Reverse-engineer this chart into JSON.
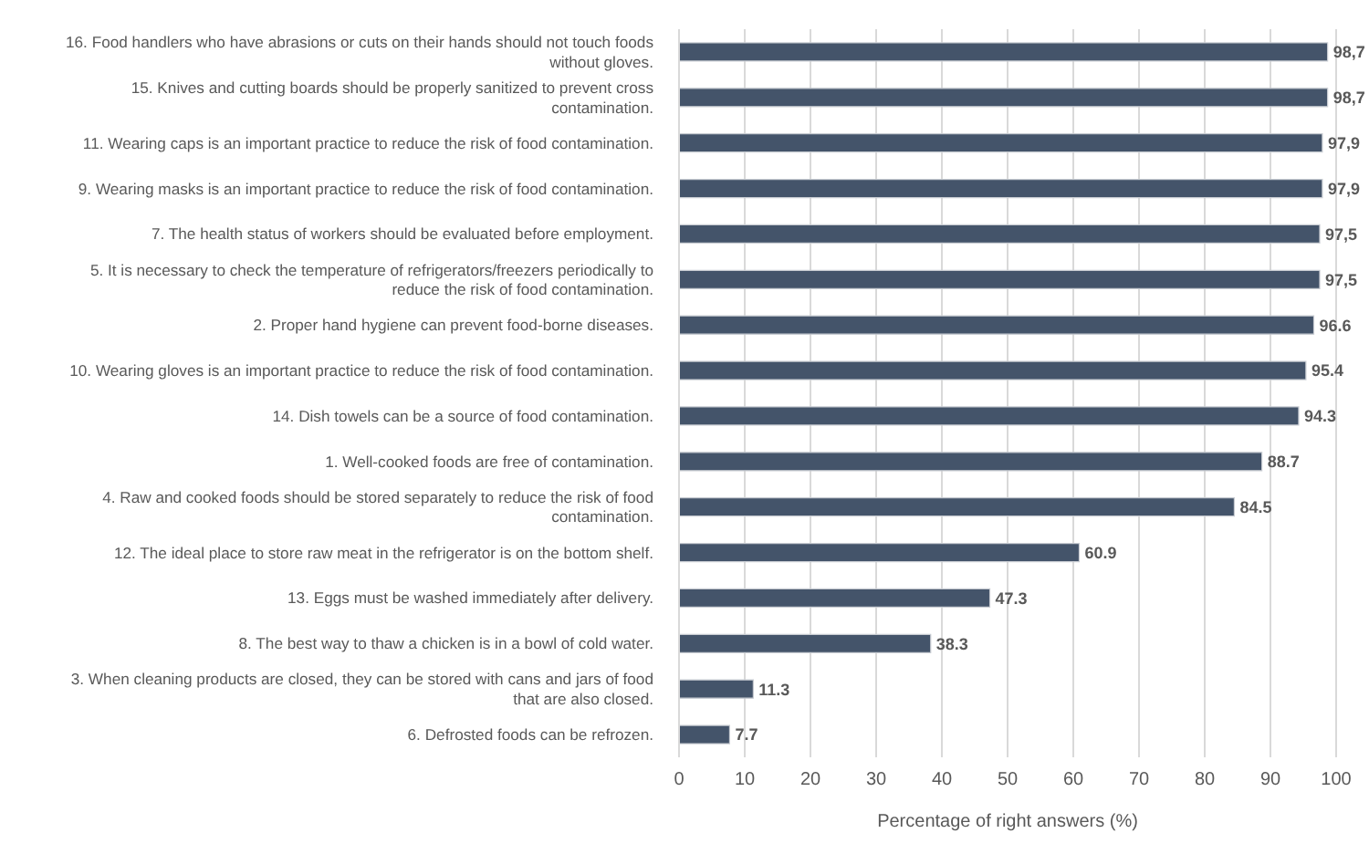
{
  "chart_data": {
    "type": "bar",
    "orientation": "horizontal",
    "xlabel": "Percentage of right answers (%)",
    "categories": [
      "16. Food handlers who have abrasions or cuts on their hands should not touch foods without gloves.",
      "15. Knives and cutting boards should be properly sanitized to prevent cross contamination.",
      "11. Wearing caps is an important practice to reduce the risk of food contamination.",
      "9. Wearing masks is an important practice to reduce the risk of food contamination.",
      "7. The health status of workers should be evaluated before employment.",
      "5. It is necessary to check the temperature of refrigerators/freezers periodically to reduce the risk of food contamination.",
      "2. Proper hand hygiene can prevent food-borne diseases.",
      "10. Wearing gloves is an important practice to reduce the risk of food contamination.",
      "14. Dish towels can be a source of food contamination.",
      "1. Well-cooked foods are free of contamination.",
      "4. Raw and cooked foods should be stored separately to reduce the risk of food contamination.",
      "12. The ideal place to store raw meat in the refrigerator is on the bottom shelf.",
      "13. Eggs must be washed immediately after delivery.",
      "8. The best way to thaw a chicken is in a bowl of cold water.",
      "3. When cleaning products are closed, they can be stored with cans and jars of food that are also closed.",
      "6. Defrosted foods can be refrozen."
    ],
    "values": [
      98.7,
      98.7,
      97.9,
      97.9,
      97.5,
      97.5,
      96.6,
      95.4,
      94.3,
      88.7,
      84.5,
      60.9,
      47.3,
      38.3,
      11.3,
      7.7
    ],
    "value_labels": [
      "98,7",
      "98,7",
      "97,9",
      "97,9",
      "97,5",
      "97,5",
      "96.6",
      "95.4",
      "94.3",
      "88.7",
      "84.5",
      "60.9",
      "47.3",
      "38.3",
      "11.3",
      "7.7"
    ],
    "color": "#44546a",
    "xlim": [
      0,
      100
    ],
    "xticks": [
      0,
      10,
      20,
      30,
      40,
      50,
      60,
      70,
      80,
      90,
      100
    ],
    "grid": "x"
  }
}
